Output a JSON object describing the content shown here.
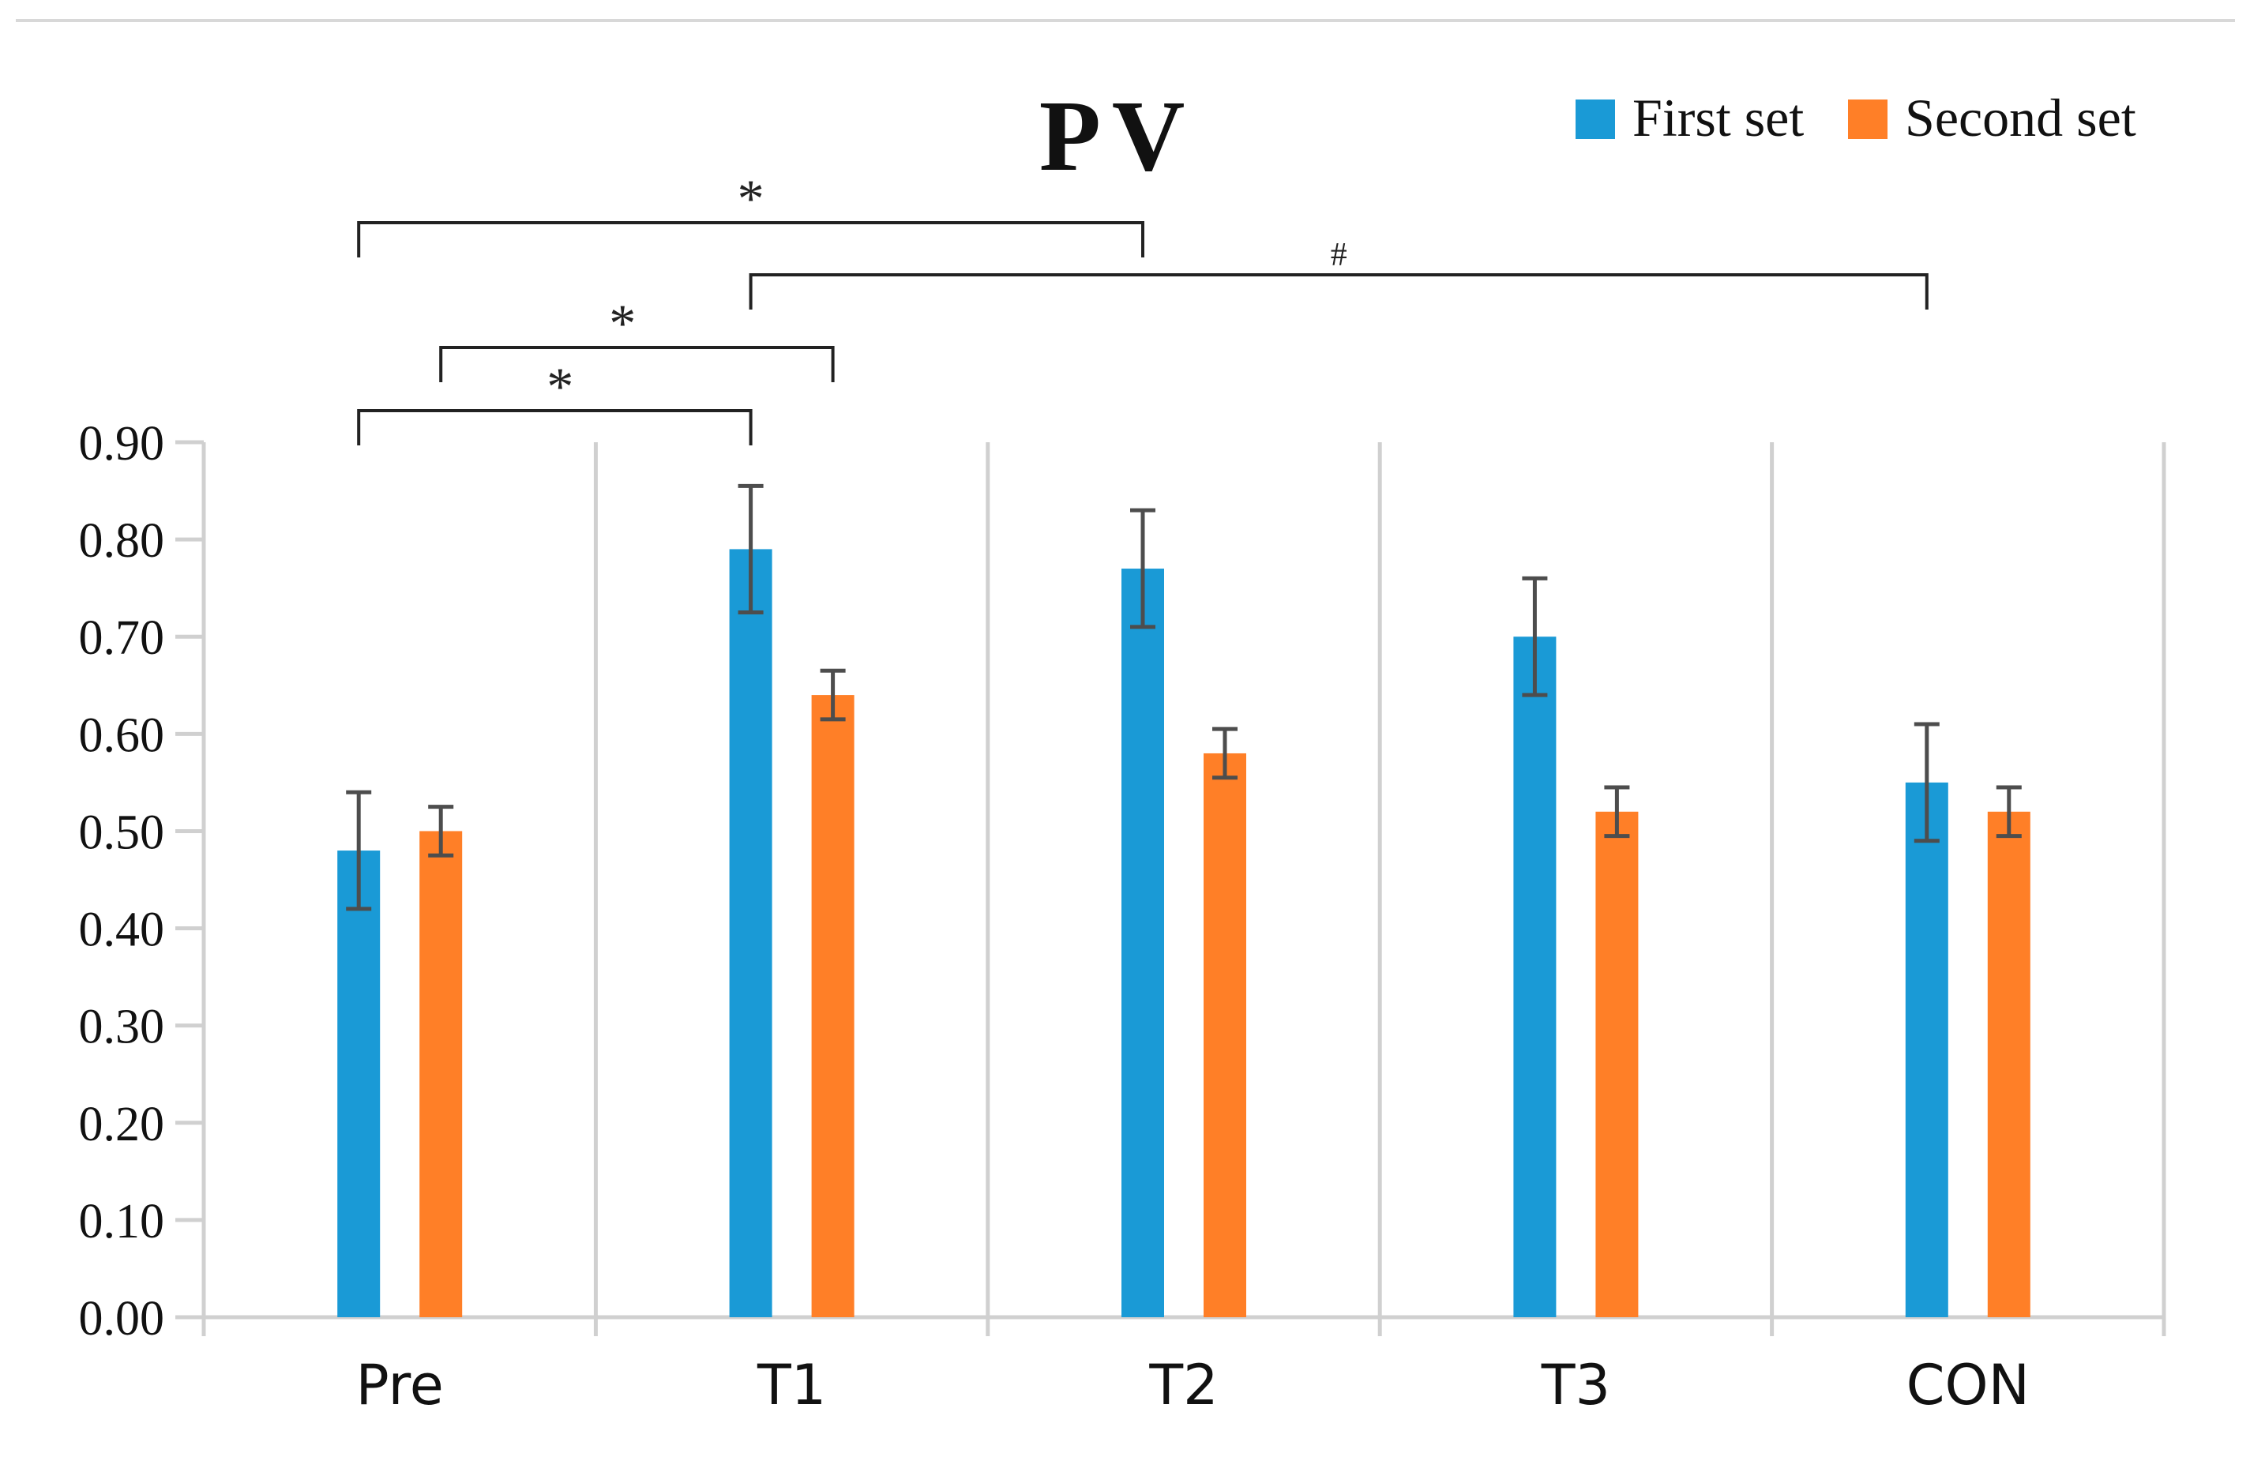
{
  "chart_data": {
    "type": "bar",
    "title": "PV",
    "xlabel": "",
    "ylabel": "",
    "categories": [
      "Pre",
      "T1",
      "T2",
      "T3",
      "CON"
    ],
    "series": [
      {
        "name": "First set",
        "color": "#1a9ad6",
        "values": [
          0.48,
          0.79,
          0.77,
          0.7,
          0.55
        ],
        "errors": [
          0.06,
          0.065,
          0.06,
          0.06,
          0.06
        ]
      },
      {
        "name": "Second set",
        "color": "#ff7f27",
        "values": [
          0.5,
          0.64,
          0.58,
          0.52,
          0.52
        ],
        "errors": [
          0.025,
          0.025,
          0.025,
          0.025,
          0.025
        ]
      }
    ],
    "ylim": [
      0,
      0.9
    ],
    "yticks": [
      "0.00",
      "0.10",
      "0.20",
      "0.30",
      "0.40",
      "0.50",
      "0.60",
      "0.70",
      "0.80",
      "0.90"
    ],
    "grid": "vertical category separators",
    "legend_position": "top-right",
    "significance": [
      {
        "from": "Pre",
        "from_series": 0,
        "to": "T2",
        "to_series": 0,
        "label": "*"
      },
      {
        "from": "T1",
        "from_series": 0,
        "to": "CON",
        "to_series": 0,
        "label": "#"
      },
      {
        "from": "Pre",
        "from_series": 1,
        "to": "T1",
        "to_series": 1,
        "label": "*"
      },
      {
        "from": "Pre",
        "from_series": 0,
        "to": "T1",
        "to_series": 0,
        "label": "*"
      }
    ],
    "colors": {
      "axis": "#d0d0d0",
      "error_bar": "#4d4d4d",
      "bracket": "#222222",
      "text": "#111111"
    }
  }
}
